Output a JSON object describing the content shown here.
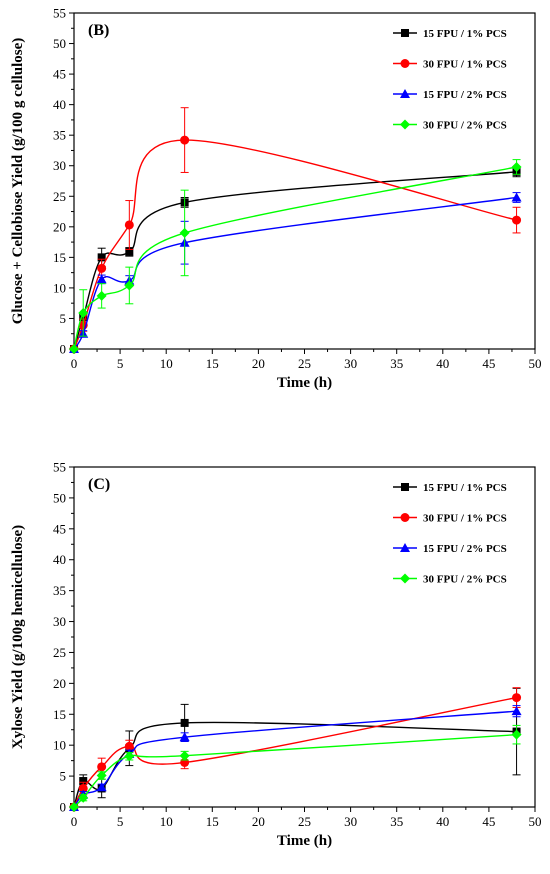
{
  "chart_data": [
    {
      "type": "line",
      "panel_label": "(B)",
      "xlabel": "Time (h)",
      "ylabel": "Glucose + Cellobiose Yield (g/100 g cellulose)",
      "xlim": [
        0,
        50
      ],
      "ylim": [
        0,
        55
      ],
      "xticks": [
        "0",
        "5",
        "10",
        "15",
        "20",
        "25",
        "30",
        "35",
        "40",
        "45",
        "50"
      ],
      "yticks": [
        "0",
        "5",
        "10",
        "15",
        "20",
        "25",
        "30",
        "35",
        "40",
        "45",
        "50",
        "55"
      ],
      "legend_position": "top-right",
      "x": [
        0,
        1,
        3,
        6,
        12,
        48
      ],
      "series": [
        {
          "name": "15 FPU / 1% PCS",
          "color": "#000000",
          "marker": "square",
          "values": [
            0,
            5.2,
            15.0,
            15.9,
            24.0,
            29.0
          ],
          "errors": [
            0,
            0.5,
            1.5,
            0.7,
            0.8,
            0.8
          ]
        },
        {
          "name": "30 FPU / 1% PCS",
          "color": "#ff0000",
          "marker": "circle",
          "values": [
            0,
            3.9,
            13.2,
            20.3,
            34.2,
            21.1
          ],
          "errors": [
            0,
            1.0,
            1.5,
            4.0,
            5.3,
            2.1
          ]
        },
        {
          "name": "15 FPU / 2% PCS",
          "color": "#0000ff",
          "marker": "triangle",
          "values": [
            0,
            2.5,
            11.4,
            11.2,
            17.4,
            24.8
          ],
          "errors": [
            0,
            0.5,
            0.7,
            0.8,
            3.5,
            0.8
          ]
        },
        {
          "name": "30 FPU / 2% PCS",
          "color": "#00ff00",
          "marker": "diamond",
          "values": [
            0,
            5.9,
            8.7,
            10.4,
            19.0,
            29.8
          ],
          "errors": [
            0,
            3.8,
            2.0,
            3.0,
            7.0,
            1.2
          ]
        }
      ]
    },
    {
      "type": "line",
      "panel_label": "(C)",
      "xlabel": "Time (h)",
      "ylabel": "Xylose Yield (g/100g hemicellulose)",
      "xlim": [
        0,
        50
      ],
      "ylim": [
        0,
        55
      ],
      "xticks": [
        "0",
        "5",
        "10",
        "15",
        "20",
        "25",
        "30",
        "35",
        "40",
        "45",
        "50"
      ],
      "yticks": [
        "0",
        "5",
        "10",
        "15",
        "20",
        "25",
        "30",
        "35",
        "40",
        "45",
        "50",
        "55"
      ],
      "legend_position": "top-right",
      "x": [
        0,
        1,
        3,
        6,
        12,
        48
      ],
      "series": [
        {
          "name": "15 FPU / 1% PCS",
          "color": "#000000",
          "marker": "square",
          "values": [
            0,
            4.2,
            3.0,
            9.5,
            13.6,
            12.2
          ],
          "errors": [
            0,
            1.0,
            1.5,
            2.8,
            3.0,
            7.0
          ]
        },
        {
          "name": "30 FPU / 1% PCS",
          "color": "#ff0000",
          "marker": "circle",
          "values": [
            0,
            3.0,
            6.5,
            9.8,
            7.2,
            17.7
          ],
          "errors": [
            0,
            1.0,
            1.4,
            1.0,
            1.0,
            1.6
          ]
        },
        {
          "name": "15 FPU / 2% PCS",
          "color": "#0000ff",
          "marker": "triangle",
          "values": [
            0,
            2.0,
            3.2,
            8.6,
            11.3,
            15.5
          ],
          "errors": [
            0,
            0.5,
            0.5,
            0.6,
            0.7,
            0.9
          ]
        },
        {
          "name": "30 FPU / 2% PCS",
          "color": "#00ff00",
          "marker": "diamond",
          "values": [
            0,
            1.5,
            5.1,
            8.2,
            8.3,
            11.7
          ],
          "errors": [
            0,
            0.5,
            0.6,
            0.6,
            0.7,
            1.5
          ]
        }
      ]
    }
  ]
}
